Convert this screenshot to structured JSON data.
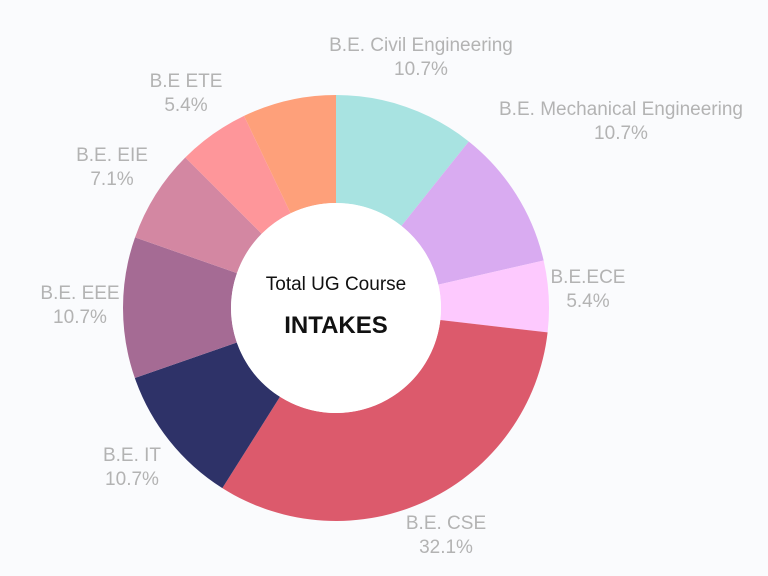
{
  "chart_data": {
    "type": "pie",
    "donut": true,
    "center_text": {
      "line1": "Total UG Course",
      "line2": "INTAKES"
    },
    "slices": [
      {
        "label": "B.E. Civil Engineering",
        "value": 10.7,
        "display": "10.7%",
        "color": "#a8e3e1"
      },
      {
        "label": "B.E. Mechanical Engineering",
        "value": 10.7,
        "display": "10.7%",
        "color": "#d9abf1"
      },
      {
        "label": "B.E.ECE",
        "value": 5.4,
        "display": "5.4%",
        "color": "#fdc9fe"
      },
      {
        "label": "B.E. CSE",
        "value": 32.1,
        "display": "32.1%",
        "color": "#dc5a6c"
      },
      {
        "label": "B.E. IT",
        "value": 10.7,
        "display": "10.7%",
        "color": "#2e3268"
      },
      {
        "label": "B.E. EEE",
        "value": 10.7,
        "display": "10.7%",
        "color": "#a56b94"
      },
      {
        "label": "B.E. EIE",
        "value": 7.1,
        "display": "7.1%",
        "color": "#d387a2"
      },
      {
        "label": "B.E ETE",
        "value": 5.4,
        "display": "5.4%",
        "color": "#fe969a"
      },
      {
        "label": "",
        "value": 7.1,
        "display": "",
        "color": "#fea07a"
      }
    ]
  }
}
